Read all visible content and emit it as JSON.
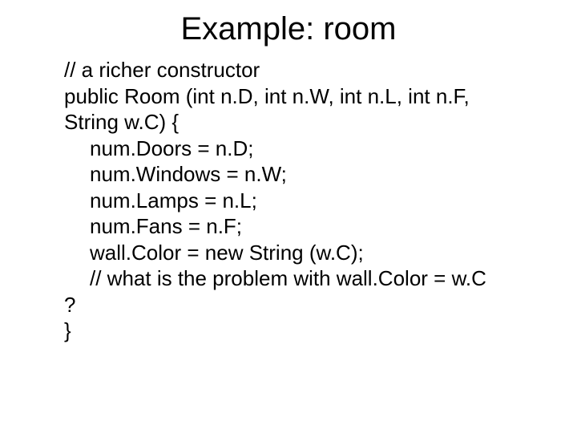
{
  "title_fontsize": 40,
  "body_fontsize": 26,
  "text_color": "#000000",
  "background_color": "#ffffff",
  "font_family": "Arial",
  "title": "Example: room",
  "lines": {
    "l0": "// a richer constructor",
    "l1": "public Room (int n.D, int n.W, int n.L, int n.F,",
    "l2": "String w.C) {",
    "l3": "num.Doors = n.D;",
    "l4": "num.Windows = n.W;",
    "l5": "num.Lamps = n.L;",
    "l6": "num.Fans = n.F;",
    "l7": "wall.Color = new String (w.C);",
    "l8": "// what is the problem with wall.Color = w.C",
    "l9": "?",
    "l10": "}"
  }
}
